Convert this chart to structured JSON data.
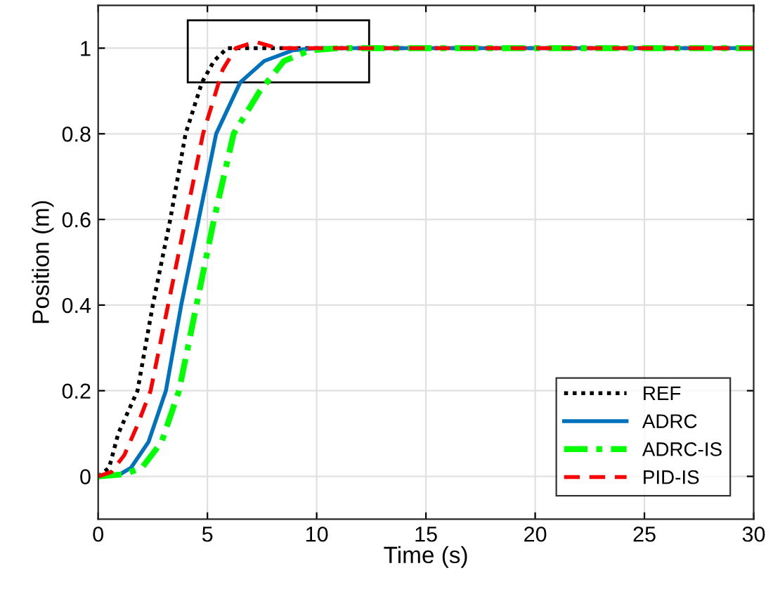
{
  "chart_data": {
    "type": "line",
    "xlabel": "Time (s)",
    "ylabel": "Position (m)",
    "xlim": [
      0,
      30
    ],
    "ylim": [
      -0.1,
      1.1
    ],
    "xticks": [
      0,
      5,
      10,
      15,
      20,
      25,
      30
    ],
    "yticks": [
      0,
      0.2,
      0.4,
      0.6,
      0.8,
      1
    ],
    "grid": true,
    "legend": "bottom right",
    "series": [
      {
        "name": "REF",
        "color": "#000000",
        "line_style": "dotted",
        "x": [
          0,
          0.5,
          0.92,
          1.8,
          2.5,
          3.3,
          4.0,
          4.75,
          5.3,
          5.9,
          7,
          10,
          30
        ],
        "values": [
          0,
          0.02,
          0.1,
          0.2,
          0.4,
          0.6,
          0.8,
          0.92,
          0.97,
          1,
          1,
          1,
          1
        ]
      },
      {
        "name": "ADRC",
        "color": "#0072bd",
        "line_style": "solid",
        "x": [
          0,
          1,
          1.5,
          2.3,
          3.1,
          3.8,
          4.6,
          5.4,
          6.5,
          7.6,
          8.9,
          10,
          20,
          30
        ],
        "values": [
          0,
          0.005,
          0.02,
          0.08,
          0.2,
          0.4,
          0.6,
          0.8,
          0.92,
          0.97,
          0.995,
          1,
          1,
          1
        ]
      },
      {
        "name": "ADRC-IS",
        "color": "#00ff00",
        "line_style": "dashdot",
        "x": [
          0,
          1.2,
          2,
          2.9,
          3.7,
          4.5,
          5.3,
          6.2,
          7.4,
          8.5,
          9.7,
          11,
          20,
          30
        ],
        "values": [
          0,
          0.005,
          0.02,
          0.08,
          0.2,
          0.4,
          0.6,
          0.8,
          0.9,
          0.97,
          0.995,
          1,
          1,
          1
        ]
      },
      {
        "name": "PID-IS",
        "color": "#ff0000",
        "line_style": "dashed",
        "x": [
          0,
          0.6,
          1.2,
          1.8,
          2.4,
          3.2,
          4.0,
          4.8,
          5.7,
          6.3,
          7.2,
          8.2,
          10,
          20,
          30
        ],
        "values": [
          0,
          0.01,
          0.05,
          0.12,
          0.2,
          0.4,
          0.6,
          0.8,
          0.95,
          1,
          1.015,
          1,
          1,
          1,
          1
        ]
      }
    ]
  }
}
